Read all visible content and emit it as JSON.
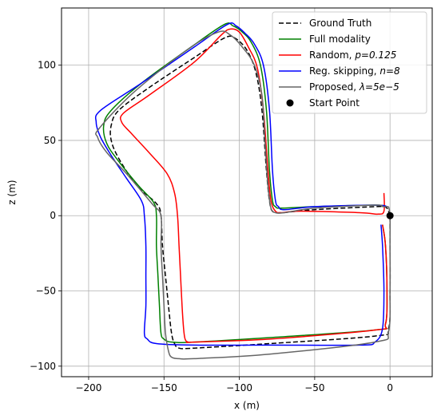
{
  "chart_data": {
    "type": "line",
    "xlabel": "x (m)",
    "ylabel": "z (m)",
    "xlim": [
      -218,
      28
    ],
    "ylim": [
      -107,
      138
    ],
    "xticks": [
      -200,
      -150,
      -100,
      -50,
      0
    ],
    "xtick_labels": [
      "−200",
      "−150",
      "−100",
      "−50",
      "0"
    ],
    "yticks": [
      -100,
      -50,
      0,
      50,
      100
    ],
    "ytick_labels": [
      "−100",
      "−50",
      "0",
      "50",
      "100"
    ],
    "grid": true,
    "legend_position": "top-right",
    "series": [
      {
        "name": "Ground Truth",
        "color": "#000000",
        "dash": "6,3",
        "x": [
          0,
          -1,
          -2,
          -4,
          -10,
          -50,
          -72,
          -78,
          -80,
          -82,
          -85,
          -89,
          -95,
          -103,
          -110,
          -130,
          -160,
          -180,
          -185,
          -185,
          -180,
          -168,
          -155,
          -152,
          -151,
          -149,
          -147,
          -145,
          -143,
          -140,
          -130,
          -80,
          -10,
          -1,
          0,
          0,
          0
        ],
        "y": [
          0,
          3,
          5,
          6,
          6,
          4,
          2,
          3,
          10,
          30,
          70,
          95,
          110,
          118,
          118,
          105,
          85,
          70,
          60,
          50,
          38,
          20,
          8,
          0,
          -20,
          -40,
          -60,
          -78,
          -85,
          -88,
          -88,
          -85,
          -80,
          -75,
          -50,
          -20,
          0
        ]
      },
      {
        "name": "Full modality",
        "color": "#008000",
        "dash": "",
        "x": [
          -2,
          -10,
          -50,
          -72,
          -76,
          -78,
          -80,
          -82,
          -86,
          -92,
          -98,
          -104,
          -110,
          -132,
          -165,
          -185,
          -190,
          -188,
          -180,
          -167,
          -157,
          -155,
          -155,
          -154,
          -153,
          -152,
          -150,
          -145,
          -130,
          -80,
          -10,
          -3,
          -2,
          -3,
          -5
        ],
        "y": [
          6,
          7,
          6,
          5,
          6,
          10,
          30,
          70,
          100,
          115,
          122,
          126,
          127,
          112,
          88,
          70,
          60,
          48,
          36,
          20,
          9,
          0,
          -20,
          -40,
          -60,
          -78,
          -82,
          -84,
          -84,
          -81,
          -76,
          -72,
          -50,
          -20,
          -6
        ]
      },
      {
        "name": "Random, $p=0.125$",
        "color": "#ff0000",
        "dash": "",
        "x": [
          -4,
          -4,
          -8,
          -20,
          -60,
          -72,
          -76,
          -79,
          -81,
          -84,
          -88,
          -94,
          -100,
          -106,
          -112,
          -130,
          -160,
          -177,
          -178,
          -172,
          -160,
          -148,
          -143,
          -141,
          -140,
          -139,
          -138,
          -137,
          -136,
          -134,
          -130,
          -80,
          -10,
          -3,
          -2,
          -3,
          -5
        ],
        "y": [
          15,
          3,
          1,
          2,
          3,
          2,
          3,
          10,
          30,
          70,
          98,
          112,
          122,
          124,
          120,
          102,
          80,
          68,
          62,
          55,
          42,
          28,
          15,
          0,
          -20,
          -40,
          -60,
          -75,
          -82,
          -84,
          -84,
          -82,
          -76,
          -72,
          -50,
          -20,
          -6
        ]
      },
      {
        "name": "Reg. skipping, $n=8$",
        "color": "#0000ff",
        "dash": "",
        "x": [
          -2,
          -10,
          -50,
          -70,
          -74,
          -76,
          -78,
          -80,
          -84,
          -90,
          -96,
          -102,
          -108,
          -130,
          -165,
          -192,
          -195,
          -192,
          -185,
          -175,
          -165,
          -163,
          -162,
          -162,
          -162,
          -163,
          -161,
          -155,
          -130,
          -80,
          -20,
          -10,
          -5,
          -4,
          -5,
          -6
        ],
        "y": [
          6,
          7,
          6,
          4,
          6,
          10,
          30,
          70,
          100,
          114,
          121,
          126,
          127,
          112,
          88,
          70,
          62,
          52,
          40,
          25,
          10,
          0,
          -20,
          -40,
          -60,
          -78,
          -82,
          -85,
          -86,
          -86,
          -86,
          -84,
          -75,
          -50,
          -20,
          -6
        ]
      },
      {
        "name": "Proposed, $\\lambda=5e-5$",
        "color": "#666666",
        "dash": "",
        "x": [
          -1,
          -5,
          -10,
          -50,
          -70,
          -76,
          -79,
          -81,
          -83,
          -85,
          -90,
          -98,
          -106,
          -114,
          -135,
          -170,
          -193,
          -194,
          -188,
          -175,
          -158,
          -152,
          -152,
          -151,
          -150,
          -149,
          -147,
          -145,
          -140,
          -130,
          -80,
          -10,
          -1,
          0,
          0,
          0,
          -1
        ],
        "y": [
          6,
          6,
          7,
          5,
          2,
          2,
          5,
          20,
          50,
          80,
          100,
          112,
          120,
          122,
          110,
          82,
          58,
          52,
          42,
          28,
          8,
          0,
          -20,
          -40,
          -60,
          -78,
          -90,
          -94,
          -95,
          -95,
          -92,
          -84,
          -77,
          -50,
          -20,
          0,
          6
        ]
      }
    ],
    "markers": [
      {
        "name": "Start Point",
        "x": 0,
        "y": 0,
        "color": "#000000"
      }
    ]
  }
}
